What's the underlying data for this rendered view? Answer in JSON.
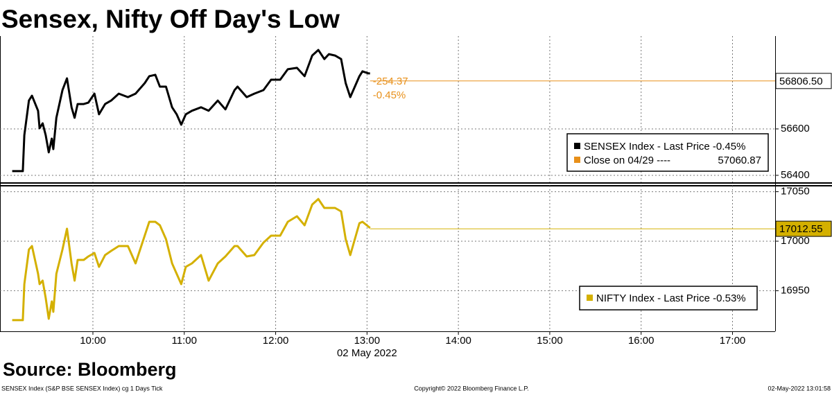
{
  "title": "Sensex, Nifty Off Day's Low",
  "source": "Source: Bloomberg",
  "footer": [
    "SENSEX Index (S&P BSE SENSEX Index) cg 1 Days  Tick",
    "Copyright© 2022 Bloomberg Finance L.P.",
    "02-May-2022 13:01:58"
  ],
  "chart_data": [
    {
      "type": "line",
      "x": [
        547,
        554,
        555,
        558,
        560,
        564,
        565,
        567,
        569,
        571,
        573,
        574,
        576,
        580,
        583,
        586,
        588,
        590,
        594,
        597,
        601,
        604,
        608,
        612,
        617,
        623,
        628,
        634,
        637,
        641,
        644,
        648,
        652,
        655,
        658,
        661,
        665,
        671,
        676,
        682,
        687,
        693,
        695,
        701,
        706,
        712,
        717,
        723,
        728,
        734,
        739,
        744,
        748,
        752,
        755,
        759,
        763,
        766,
        769,
        772,
        775,
        777,
        781,
        782
      ],
      "series": [
        {
          "name": "SENSEX Index - Last Price -0.45%",
          "color": "#000000",
          "values": [
            56418,
            56418,
            56573,
            56722,
            56743,
            56678,
            56603,
            56624,
            56573,
            56499,
            56558,
            56513,
            56648,
            56767,
            56818,
            56693,
            56648,
            56707,
            56707,
            56713,
            56752,
            56663,
            56707,
            56722,
            56752,
            56737,
            56752,
            56797,
            56827,
            56833,
            56782,
            56782,
            56693,
            56663,
            56618,
            56663,
            56678,
            56693,
            56678,
            56722,
            56684,
            56767,
            56782,
            56737,
            56752,
            56767,
            56812,
            56812,
            56857,
            56863,
            56827,
            56916,
            56940,
            56901,
            56922,
            56916,
            56901,
            56797,
            56737,
            56782,
            56827,
            56848,
            56839,
            56839
          ]
        }
      ],
      "reference": {
        "name": "Close on 04/29 ----",
        "value": 57060.87,
        "color": "#e8901a"
      },
      "last_price": {
        "value": 56806.5,
        "label": "56806.50",
        "box_color": "#ffffff"
      },
      "annotations": [
        "-254.37",
        "-0.45%"
      ],
      "ylim": [
        56370,
        57000
      ],
      "yticks": [
        56400,
        56600
      ],
      "grid": true
    },
    {
      "type": "line",
      "x": [
        547,
        554,
        555,
        558,
        560,
        564,
        565,
        567,
        569,
        571,
        573,
        574,
        576,
        580,
        583,
        586,
        588,
        590,
        594,
        597,
        601,
        604,
        608,
        612,
        617,
        623,
        628,
        634,
        637,
        641,
        644,
        648,
        652,
        655,
        658,
        661,
        665,
        671,
        676,
        682,
        687,
        693,
        695,
        701,
        706,
        712,
        717,
        723,
        728,
        734,
        739,
        744,
        748,
        752,
        755,
        759,
        763,
        766,
        769,
        772,
        775,
        777,
        781,
        782
      ],
      "series": [
        {
          "name": "NIFTY Index - Last Price -0.53%",
          "color": "#d4b000",
          "values": [
            16920.3,
            16920.3,
            16956.7,
            16991.6,
            16995.1,
            16967.1,
            16956.7,
            16960.2,
            16942.7,
            16921.7,
            16939.2,
            16928.7,
            16967.1,
            16991.6,
            17012.6,
            16977.6,
            16960.2,
            16981.1,
            16981.1,
            16984.6,
            16988.1,
            16974.1,
            16986.0,
            16990.2,
            16995.1,
            16995.1,
            16977.6,
            17005.6,
            17019.6,
            17019.6,
            17016.1,
            17002.1,
            16977.6,
            16967.1,
            16956.7,
            16974.1,
            16977.6,
            16986.0,
            16960.2,
            16977.6,
            16984.6,
            16995.1,
            16995.1,
            16984.6,
            16986.0,
            16998.6,
            17005.6,
            17005.6,
            17019.6,
            17025.2,
            17016.1,
            17037.0,
            17042.6,
            17033.6,
            17033.6,
            17033.6,
            17030.1,
            17002.1,
            16986.0,
            17002.1,
            17018.2,
            17019.6,
            17014.7,
            17013.3
          ]
        }
      ],
      "last_price": {
        "value": 17012.55,
        "label": "17012.55",
        "box_color": "#d4b000"
      },
      "xlabel": "02 May 2022",
      "xlim": [
        539,
        1048
      ],
      "xticks": [
        {
          "value": 600,
          "label": "10:00"
        },
        {
          "value": 660,
          "label": "11:00"
        },
        {
          "value": 720,
          "label": "12:00"
        },
        {
          "value": 780,
          "label": "13:00"
        },
        {
          "value": 840,
          "label": "14:00"
        },
        {
          "value": 900,
          "label": "15:00"
        },
        {
          "value": 960,
          "label": "16:00"
        },
        {
          "value": 1020,
          "label": "17:00"
        }
      ],
      "ylim": [
        16909,
        17056
      ],
      "yticks": [
        16950,
        17000,
        17050
      ],
      "grid": true
    }
  ]
}
